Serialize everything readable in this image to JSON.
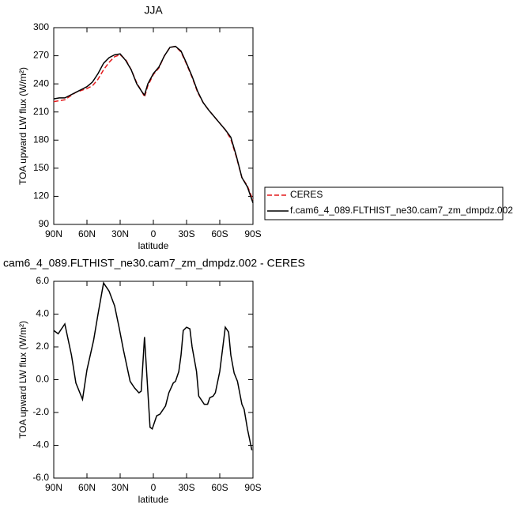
{
  "chart_data": [
    {
      "type": "line",
      "title": "JJA",
      "x_label": "latitude",
      "y_label": "TOA upward LW flux (W/m²)",
      "x": [
        90,
        85,
        80,
        75,
        70,
        65,
        60,
        55,
        50,
        45,
        40,
        35,
        30,
        25,
        20,
        15,
        10,
        8,
        5,
        0,
        -5,
        -10,
        -15,
        -20,
        -25,
        -30,
        -35,
        -40,
        -45,
        -50,
        -55,
        -60,
        -65,
        -70,
        -75,
        -80,
        -85,
        -90
      ],
      "series": [
        {
          "name": "CERES",
          "color": "#e41a1c",
          "line_style": "dashed",
          "values": [
            221,
            222,
            223,
            227,
            231,
            233,
            235,
            238,
            245,
            255,
            263,
            269,
            271,
            266,
            255,
            241,
            231,
            226,
            238,
            250,
            257,
            270,
            279,
            280,
            274,
            261,
            247,
            231,
            220,
            212,
            205,
            198,
            191,
            181,
            162,
            140,
            131,
            116
          ]
        },
        {
          "name": "f.cam6_4_089.FLTHIST_ne30.cam7_zm_dmpdz.002",
          "color": "#000000",
          "line_style": "solid",
          "values": [
            224,
            225,
            225,
            228,
            231,
            234,
            237,
            242,
            251,
            262,
            268,
            271,
            272,
            265,
            255,
            240,
            231,
            228,
            240,
            251,
            258,
            270,
            279,
            280,
            275,
            262,
            248,
            232,
            220,
            212,
            205,
            198,
            191,
            183,
            163,
            140,
            130,
            113
          ]
        }
      ],
      "xlim": [
        90,
        -90
      ],
      "xticks": [
        {
          "value": 90,
          "label": "90N"
        },
        {
          "value": 60,
          "label": "60N"
        },
        {
          "value": 30,
          "label": "30N"
        },
        0,
        {
          "value": -30,
          "label": "30S"
        },
        {
          "value": -60,
          "label": "60S"
        },
        {
          "value": -90,
          "label": "90S"
        }
      ],
      "ylim": [
        90,
        300
      ],
      "yticks": [
        90,
        120,
        150,
        180,
        210,
        240,
        270,
        300
      ],
      "legend": "right"
    },
    {
      "type": "line",
      "title": "cam6_4_089.FLTHIST_ne30.cam7_zm_dmpdz.002 - CERES",
      "x_label": "latitude",
      "y_label": "TOA upward LW flux (W/m²)",
      "x": [
        90,
        86,
        80,
        74,
        70,
        64,
        60,
        54,
        50,
        45,
        40,
        35,
        31,
        27,
        21,
        17,
        13,
        11,
        8,
        3,
        1,
        -3,
        -6,
        -11,
        -14,
        -18,
        -20,
        -23,
        -25,
        -27,
        -30,
        -33,
        -35,
        -39,
        -41,
        -46,
        -49,
        -51,
        -54,
        -56,
        -60,
        -65,
        -68,
        -70,
        -73,
        -76,
        -80,
        -82,
        -85,
        -89
      ],
      "series": [
        {
          "color": "#000000",
          "line_style": "solid",
          "values": [
            3.0,
            2.8,
            3.4,
            1.5,
            -0.2,
            -1.2,
            0.6,
            2.4,
            4.0,
            5.9,
            5.4,
            4.5,
            3.2,
            1.8,
            -0.1,
            -0.5,
            -0.8,
            -0.7,
            2.6,
            -2.9,
            -3.0,
            -2.2,
            -2.1,
            -1.6,
            -0.8,
            -0.2,
            -0.1,
            0.5,
            1.5,
            3.0,
            3.2,
            3.1,
            2.0,
            0.5,
            -1.0,
            -1.5,
            -1.5,
            -1.1,
            -1.0,
            -0.8,
            0.5,
            3.2,
            2.9,
            1.5,
            0.4,
            -0.1,
            -1.5,
            -1.8,
            -3.0,
            -4.3
          ]
        }
      ],
      "xlim": [
        90,
        -90
      ],
      "xticks": [
        {
          "value": 90,
          "label": "90N"
        },
        {
          "value": 60,
          "label": "60N"
        },
        {
          "value": 30,
          "label": "30N"
        },
        0,
        {
          "value": -30,
          "label": "30S"
        },
        {
          "value": -60,
          "label": "60S"
        },
        {
          "value": -90,
          "label": "90S"
        }
      ],
      "ylim": [
        -6,
        6
      ],
      "yticks": [
        {
          "value": -6,
          "label": "-6.0"
        },
        {
          "value": -4,
          "label": "-4.0"
        },
        {
          "value": -2,
          "label": "-2.0"
        },
        {
          "value": 0,
          "label": "0.0"
        },
        {
          "value": 2,
          "label": "2.0"
        },
        {
          "value": 4,
          "label": "4.0"
        },
        {
          "value": 6,
          "label": "6.0"
        }
      ]
    }
  ]
}
